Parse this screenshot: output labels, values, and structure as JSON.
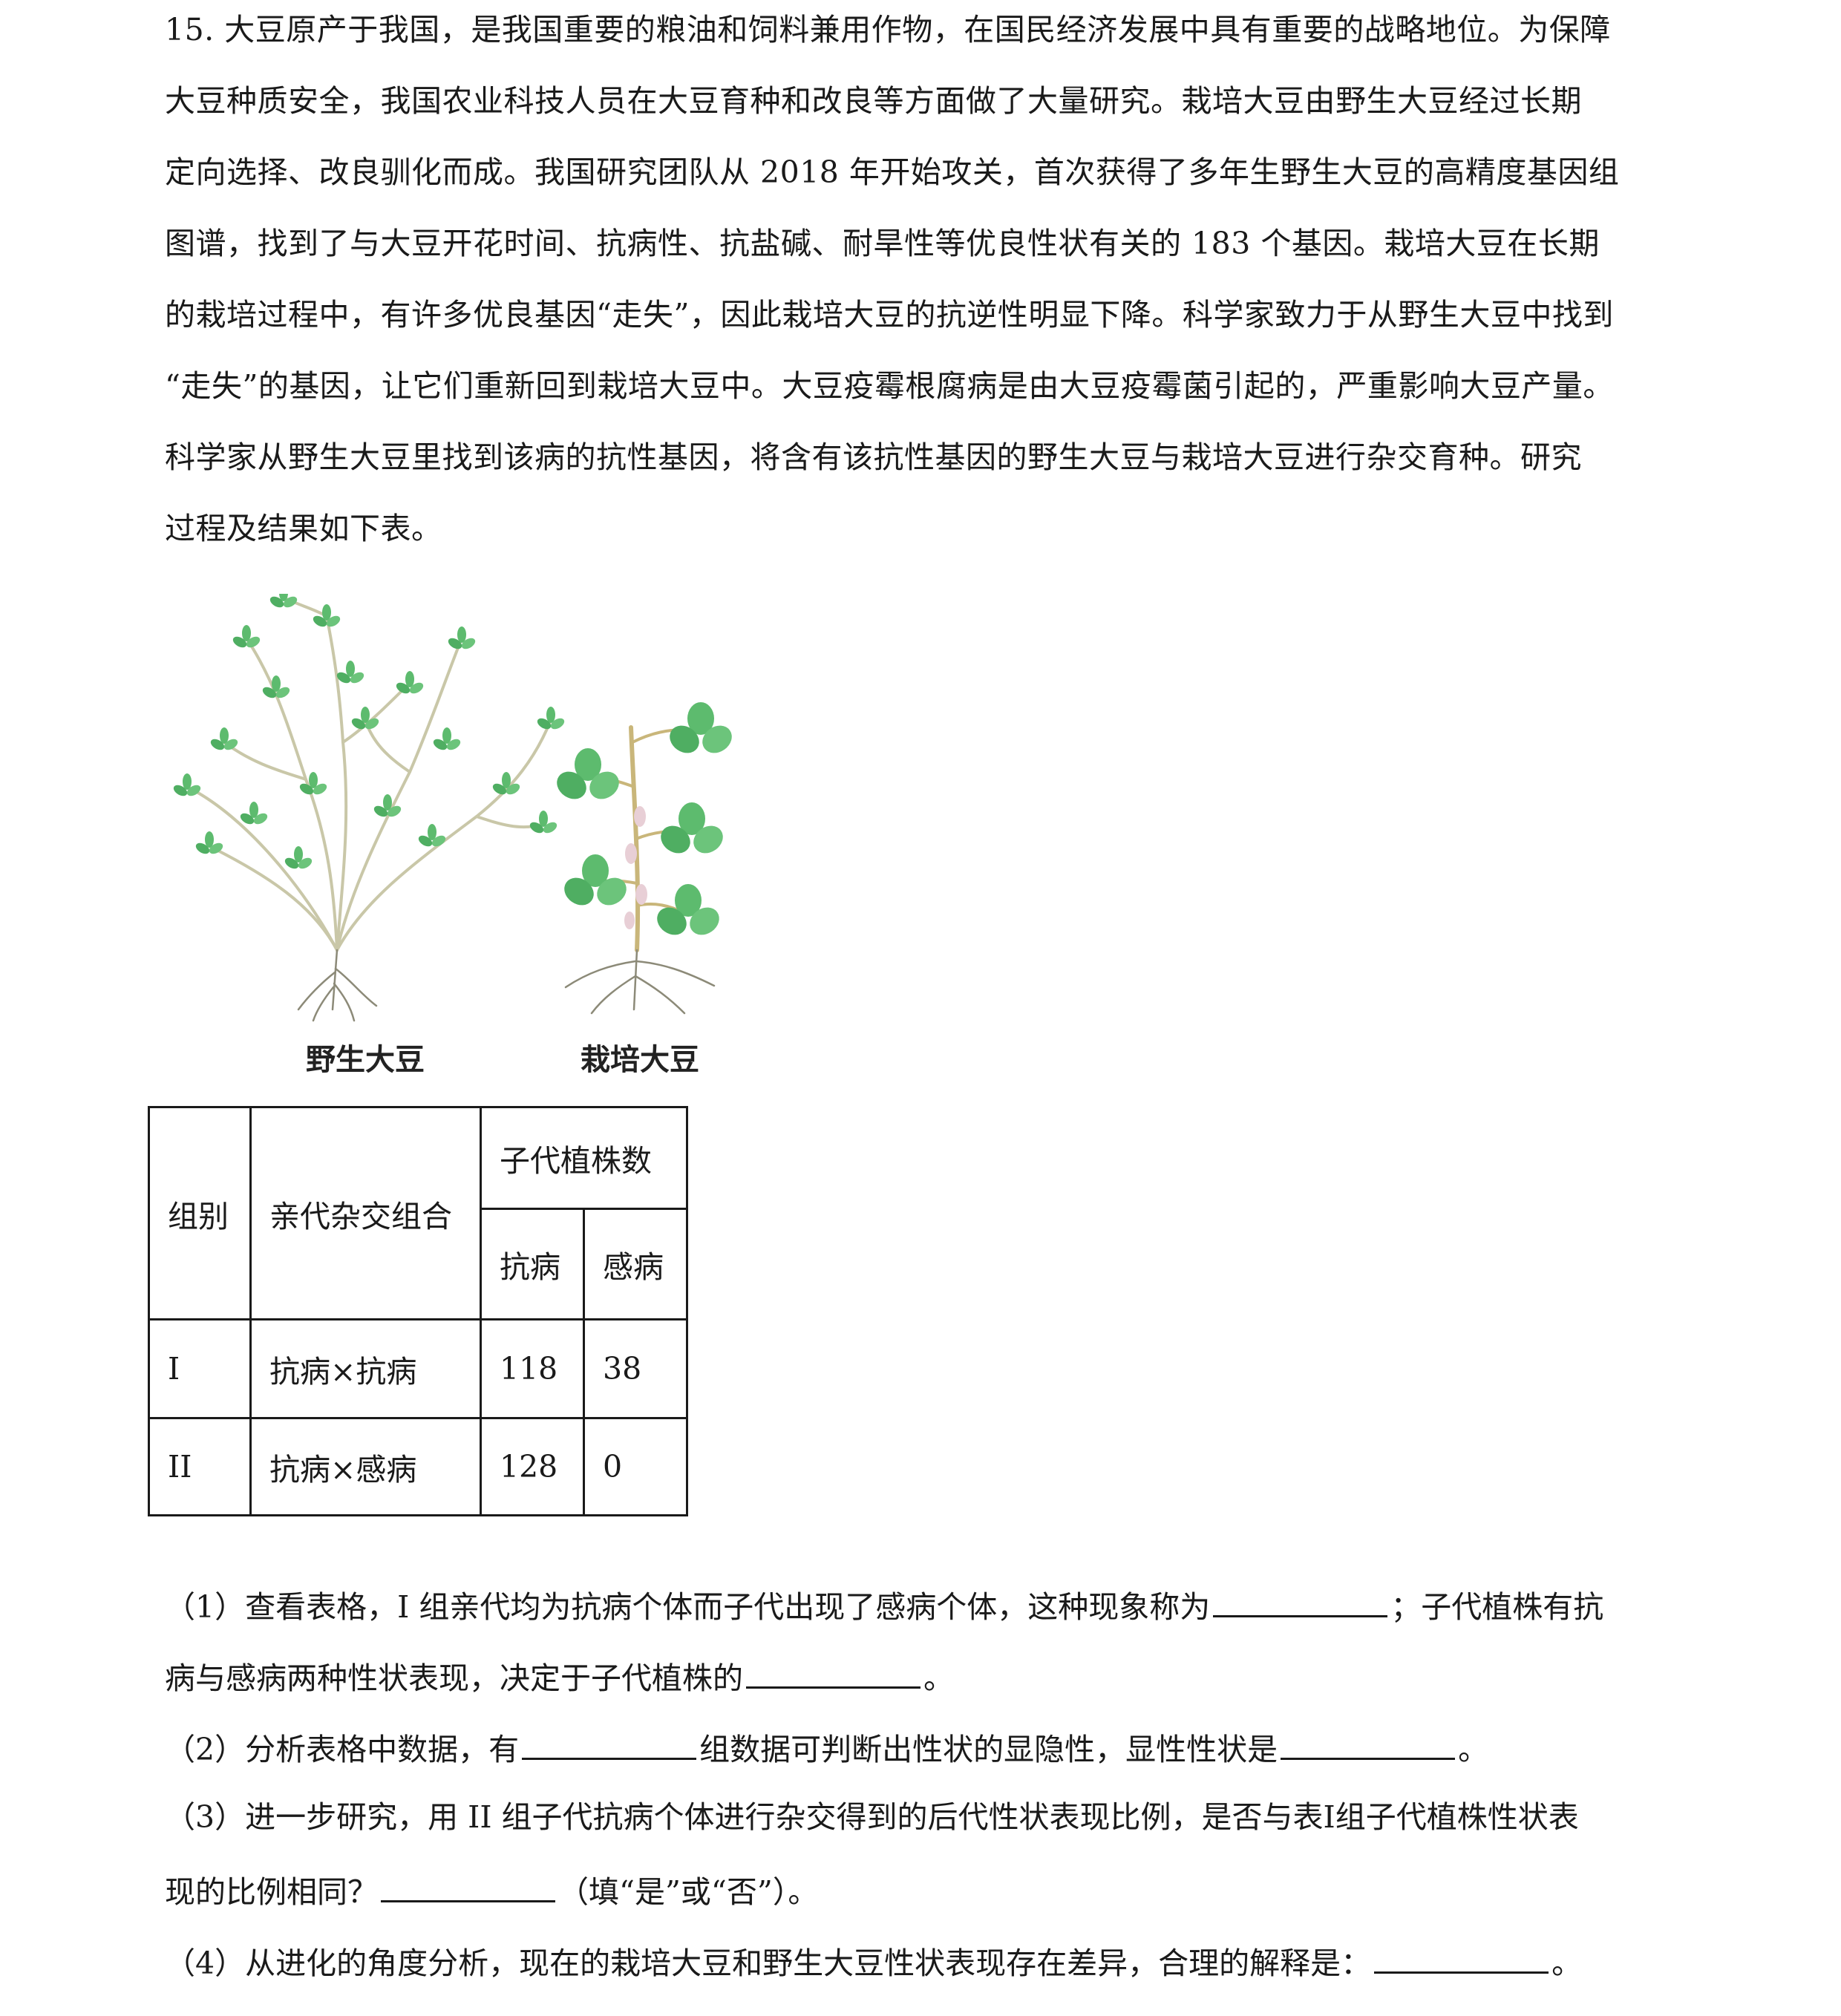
{
  "problem": {
    "number": "15.",
    "lines": [
      "大豆原产于我国，是我国重要的粮油和饲料兼用作物，在国民经济发展中具有重要的战略地位。为保障",
      "大豆种质安全，我国农业科技人员在大豆育种和改良等方面做了大量研究。栽培大豆由野生大豆经过长期",
      "定向选择、改良驯化而成。我国研究团队从 2018 年开始攻关，首次获得了多年生野生大豆的高精度基因组",
      "图谱，找到了与大豆开花时间、抗病性、抗盐碱、耐旱性等优良性状有关的 183 个基因。栽培大豆在长期",
      "的栽培过程中，有许多优良基因“走失”，因此栽培大豆的抗逆性明显下降。科学家致力于从野生大豆中找到",
      "“走失”的基因，让它们重新回到栽培大豆中。大豆疫霉根腐病是由大豆疫霉菌引起的，严重影响大豆产量。",
      "科学家从野生大豆里找到该病的抗性基因，将含有该抗性基因的野生大豆与栽培大豆进行杂交育种。研究",
      "过程及结果如下表。"
    ]
  },
  "figure": {
    "wild_label": "野生大豆",
    "cultivated_label": "栽培大豆",
    "leaf_color": "#5dbb6e",
    "stem_color": "#c9c7a8"
  },
  "table": {
    "header_group": "组别",
    "header_cross": "亲代杂交组合",
    "header_offspring": "子代植株数",
    "header_resistant": "抗病",
    "header_susceptible": "感病",
    "rows": [
      {
        "group": "I",
        "cross": "抗病×抗病",
        "resistant": "118",
        "susceptible": "38"
      },
      {
        "group": "II",
        "cross": "抗病×感病",
        "resistant": "128",
        "susceptible": "0"
      }
    ]
  },
  "questions": {
    "q1_a": "（1）查看表格，I 组亲代均为抗病个体而子代出现了感病个体，这种现象称为",
    "q1_b": "；子代植株有抗",
    "q1_c": "病与感病两种性状表现，决定于子代植株的",
    "q1_d": "。",
    "q2_a": "（2）分析表格中数据，有",
    "q2_b": "组数据可判断出性状的显隐性，显性性状是",
    "q2_c": "。",
    "q3_a": "（3）进一步研究，用 II 组子代抗病个体进行杂交得到的后代性状表现比例，是否与表I组子代植株性状表",
    "q3_b": "现的比例相同？",
    "q3_c": "（填“是”或“否”）。",
    "q4_a": "（4）从进化的角度分析，现在的栽培大豆和野生大豆性状表现存在差异，合理的解释是：",
    "q4_b": "。"
  }
}
